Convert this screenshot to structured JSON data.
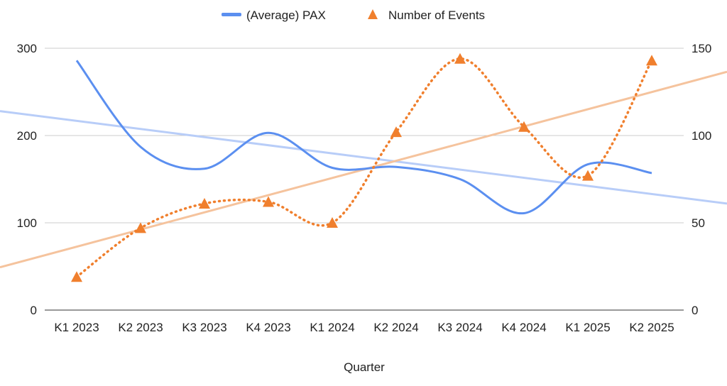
{
  "chart_data": {
    "type": "line",
    "title": "",
    "xlabel": "Quarter",
    "categories": [
      "K1 2023",
      "K2 2023",
      "K3 2023",
      "K4 2023",
      "K1 2024",
      "K2 2024",
      "K3 2024",
      "K4 2024",
      "K1 2025",
      "K2 2025"
    ],
    "left_axis": {
      "ylim": [
        0,
        300
      ],
      "ticks": [
        "0",
        "100",
        "200",
        "300"
      ]
    },
    "right_axis": {
      "ylim": [
        0,
        150
      ],
      "ticks": [
        "0",
        "50",
        "100",
        "150"
      ]
    },
    "grid": true,
    "legend": {
      "placement": "top",
      "entries": [
        "(Average) PAX",
        "Number of Events"
      ]
    },
    "series": [
      {
        "name": "(Average) PAX",
        "axis": "left",
        "color": "#5b8ff0",
        "style": "smooth-solid",
        "values": [
          286,
          187,
          162,
          203,
          163,
          164,
          150,
          111,
          167,
          157
        ],
        "trendline": {
          "color": "#b8cdf8",
          "start": 228,
          "end": 122
        }
      },
      {
        "name": "Number of Events",
        "axis": "right",
        "color": "#f07f2d",
        "style": "smooth-dotted",
        "marker": "triangle",
        "values": [
          19,
          47,
          61,
          62,
          50,
          102,
          144,
          105,
          77,
          143
        ],
        "trendline": {
          "color": "#f5c39d",
          "start": 24.5,
          "end": 136.5
        }
      }
    ]
  }
}
